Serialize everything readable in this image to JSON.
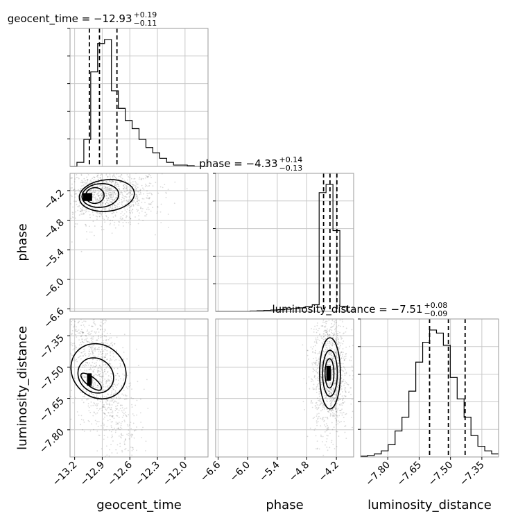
{
  "chart_data": {
    "type": "corner",
    "grid": true,
    "parameters": [
      {
        "name": "geocent_time",
        "title_main": "geocent_time = −12.93",
        "title_plus": "+0.19",
        "title_minus": "−0.11",
        "range": [
          -13.25,
          -11.75
        ],
        "ticks": [
          -13.2,
          -12.9,
          -12.6,
          -12.3,
          -12.0
        ],
        "tick_labels": [
          "−13.2",
          "−12.9",
          "−12.6",
          "−12.3",
          "−12.0"
        ],
        "quantiles": [
          -13.04,
          -12.93,
          -12.74
        ],
        "histogram": {
          "bin_start": -13.25,
          "bin_width": 0.075,
          "counts": [
            0,
            0.03,
            0.2,
            0.7,
            0.91,
            0.94,
            0.56,
            0.43,
            0.34,
            0.28,
            0.2,
            0.14,
            0.1,
            0.06,
            0.03,
            0.01,
            0.01,
            0.005,
            0,
            0
          ]
        }
      },
      {
        "name": "phase",
        "title_main": "phase = −4.33",
        "title_plus": "+0.14",
        "title_minus": "−0.13",
        "range": [
          -6.65,
          -3.85
        ],
        "ticks": [
          -6.6,
          -6.0,
          -5.4,
          -4.8,
          -4.2
        ],
        "tick_labels": [
          "−6.6",
          "−6.0",
          "−5.4",
          "−4.8",
          "−4.2"
        ],
        "quantiles": [
          -4.46,
          -4.33,
          -4.19
        ],
        "histogram": {
          "bin_start": -6.65,
          "bin_width": 0.14,
          "counts": [
            0,
            0,
            0,
            0,
            0,
            0.002,
            0.004,
            0.006,
            0.008,
            0.01,
            0.013,
            0.017,
            0.021,
            0.028,
            0.04,
            0.72,
            0.77,
            0.49,
            0.03,
            0
          ]
        }
      },
      {
        "name": "luminosity_distance",
        "title_main": "luminosity_distance = −7.51",
        "title_plus": "+0.08",
        "title_minus": "−0.09",
        "range": [
          -7.93,
          -7.27
        ],
        "ticks": [
          -7.8,
          -7.65,
          -7.5,
          -7.35
        ],
        "tick_labels": [
          "−7.80",
          "−7.65",
          "−7.50",
          "−7.35"
        ],
        "quantiles": [
          -7.6,
          -7.51,
          -7.43
        ],
        "histogram": {
          "bin_start": -7.93,
          "bin_width": 0.033,
          "counts": [
            0.005,
            0.01,
            0.02,
            0.04,
            0.08,
            0.17,
            0.26,
            0.43,
            0.62,
            0.75,
            0.83,
            0.81,
            0.73,
            0.52,
            0.38,
            0.26,
            0.14,
            0.07,
            0.04,
            0.02
          ]
        }
      }
    ],
    "pairs": [
      {
        "x": "geocent_time",
        "y": "phase",
        "mode": [
          -13.06,
          -4.33
        ],
        "contours": [
          {
            "center": [
              -12.98,
              -4.3
            ],
            "rx": 0.1,
            "ry": 0.16,
            "angle_deg": -4
          },
          {
            "center": [
              -12.92,
              -4.3
            ],
            "rx": 0.2,
            "ry": 0.24,
            "angle_deg": -5
          },
          {
            "center": [
              -12.85,
              -4.3
            ],
            "rx": 0.3,
            "ry": 0.32,
            "angle_deg": -6
          }
        ]
      },
      {
        "x": "geocent_time",
        "y": "luminosity_distance",
        "mode": [
          -13.04,
          -7.56
        ],
        "contours": [
          {
            "center": [
              -13.02,
              -7.57
            ],
            "rx": 0.05,
            "ry": 0.06,
            "angle_deg": -52
          },
          {
            "center": [
              -12.97,
              -7.54
            ],
            "rx": 0.18,
            "ry": 0.09,
            "angle_deg": -48
          },
          {
            "center": [
              -12.94,
              -7.52
            ],
            "rx": 0.28,
            "ry": 0.14,
            "angle_deg": -45
          }
        ]
      },
      {
        "x": "phase",
        "y": "luminosity_distance",
        "mode": [
          -4.36,
          -7.53
        ],
        "contours": [
          {
            "center": [
              -4.34,
              -7.53
            ],
            "rx": 0.09,
            "ry": 0.07,
            "angle_deg": 0
          },
          {
            "center": [
              -4.33,
              -7.53
            ],
            "rx": 0.15,
            "ry": 0.11,
            "angle_deg": 0
          },
          {
            "center": [
              -4.33,
              -7.53
            ],
            "rx": 0.21,
            "ry": 0.17,
            "angle_deg": 0
          }
        ]
      }
    ]
  }
}
